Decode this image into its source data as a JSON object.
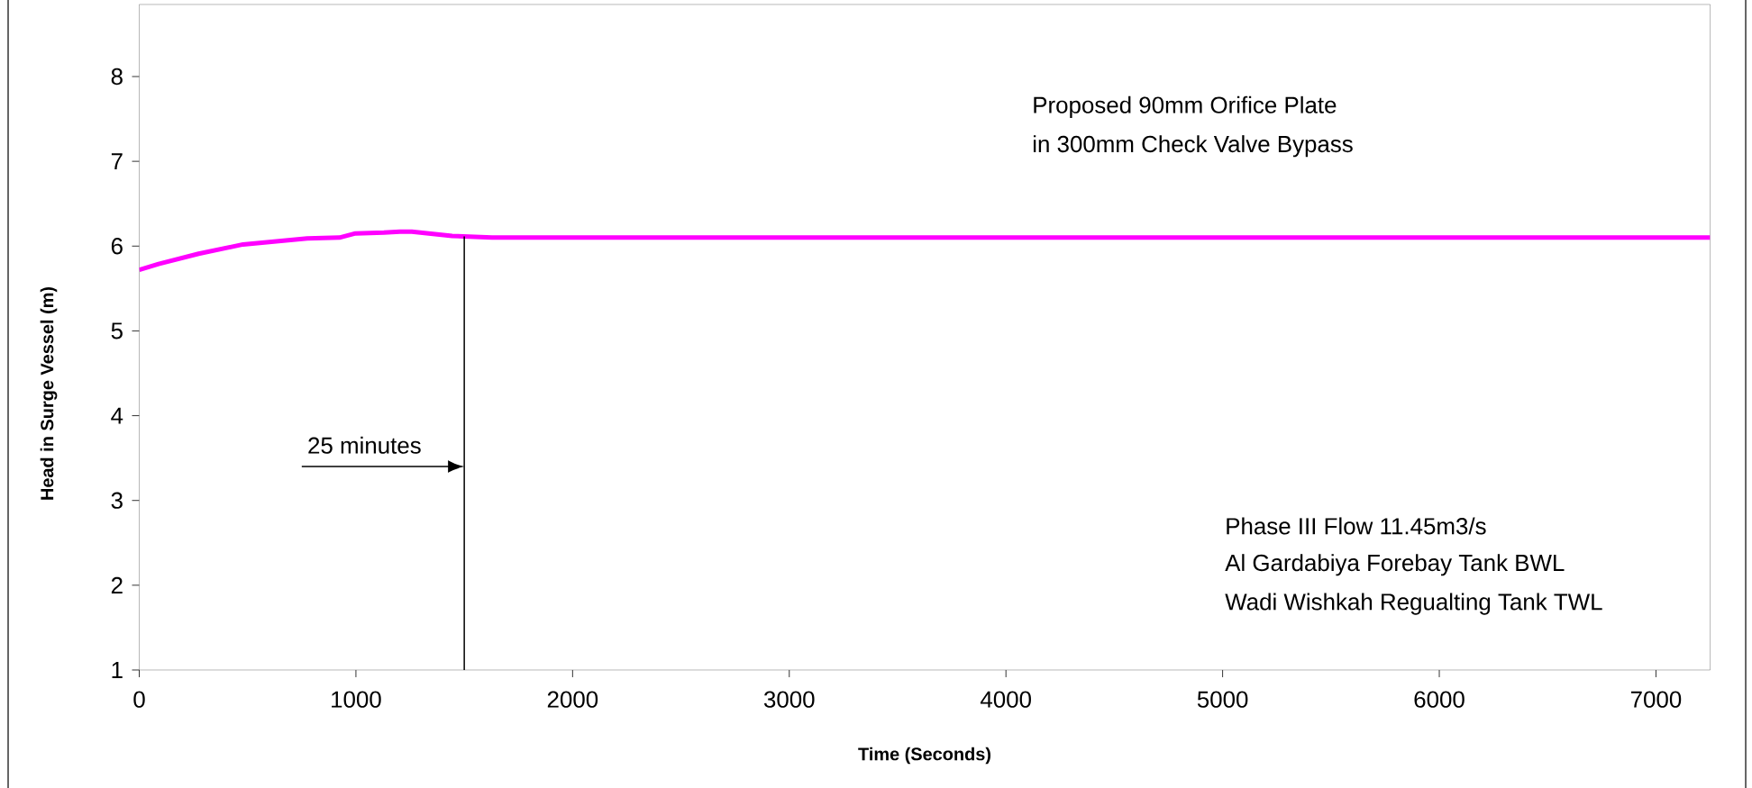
{
  "chart_data": {
    "type": "line",
    "xlabel": "Time (Seconds)",
    "ylabel": "Head in Surge Vessel (m)",
    "x": [
      0,
      89,
      274,
      479,
      775,
      924,
      998,
      1129,
      1203,
      1258,
      1444,
      1628,
      1814,
      7250
    ],
    "series": [
      {
        "color": "#ff00ff",
        "values": [
          5.72,
          5.79,
          5.91,
          6.02,
          6.09,
          6.1,
          6.15,
          6.16,
          6.17,
          6.17,
          6.12,
          6.1,
          6.1,
          6.1
        ]
      }
    ],
    "xlim": [
      0,
      7250
    ],
    "ylim": [
      1,
      8.85
    ],
    "xticks": [
      0,
      1000,
      2000,
      3000,
      4000,
      5000,
      6000,
      7000
    ],
    "yticks": [
      1,
      2,
      3,
      4,
      5,
      6,
      7,
      8
    ],
    "ref_lines": [
      {
        "axis": "x",
        "value": 1500,
        "color": "#000000"
      }
    ],
    "annotations": [
      {
        "text": "25 minutes",
        "x": 1500,
        "y": 3.4
      },
      "Proposed 90mm Orifice Plate",
      "in 300mm Check Valve Bypass",
      "Phase III Flow 11.45m3/s",
      "Al Gardabiya Forebay Tank BWL",
      "Wadi Wishkah Regualting Tank TWL"
    ],
    "marker": "none",
    "line_style": "solid"
  }
}
